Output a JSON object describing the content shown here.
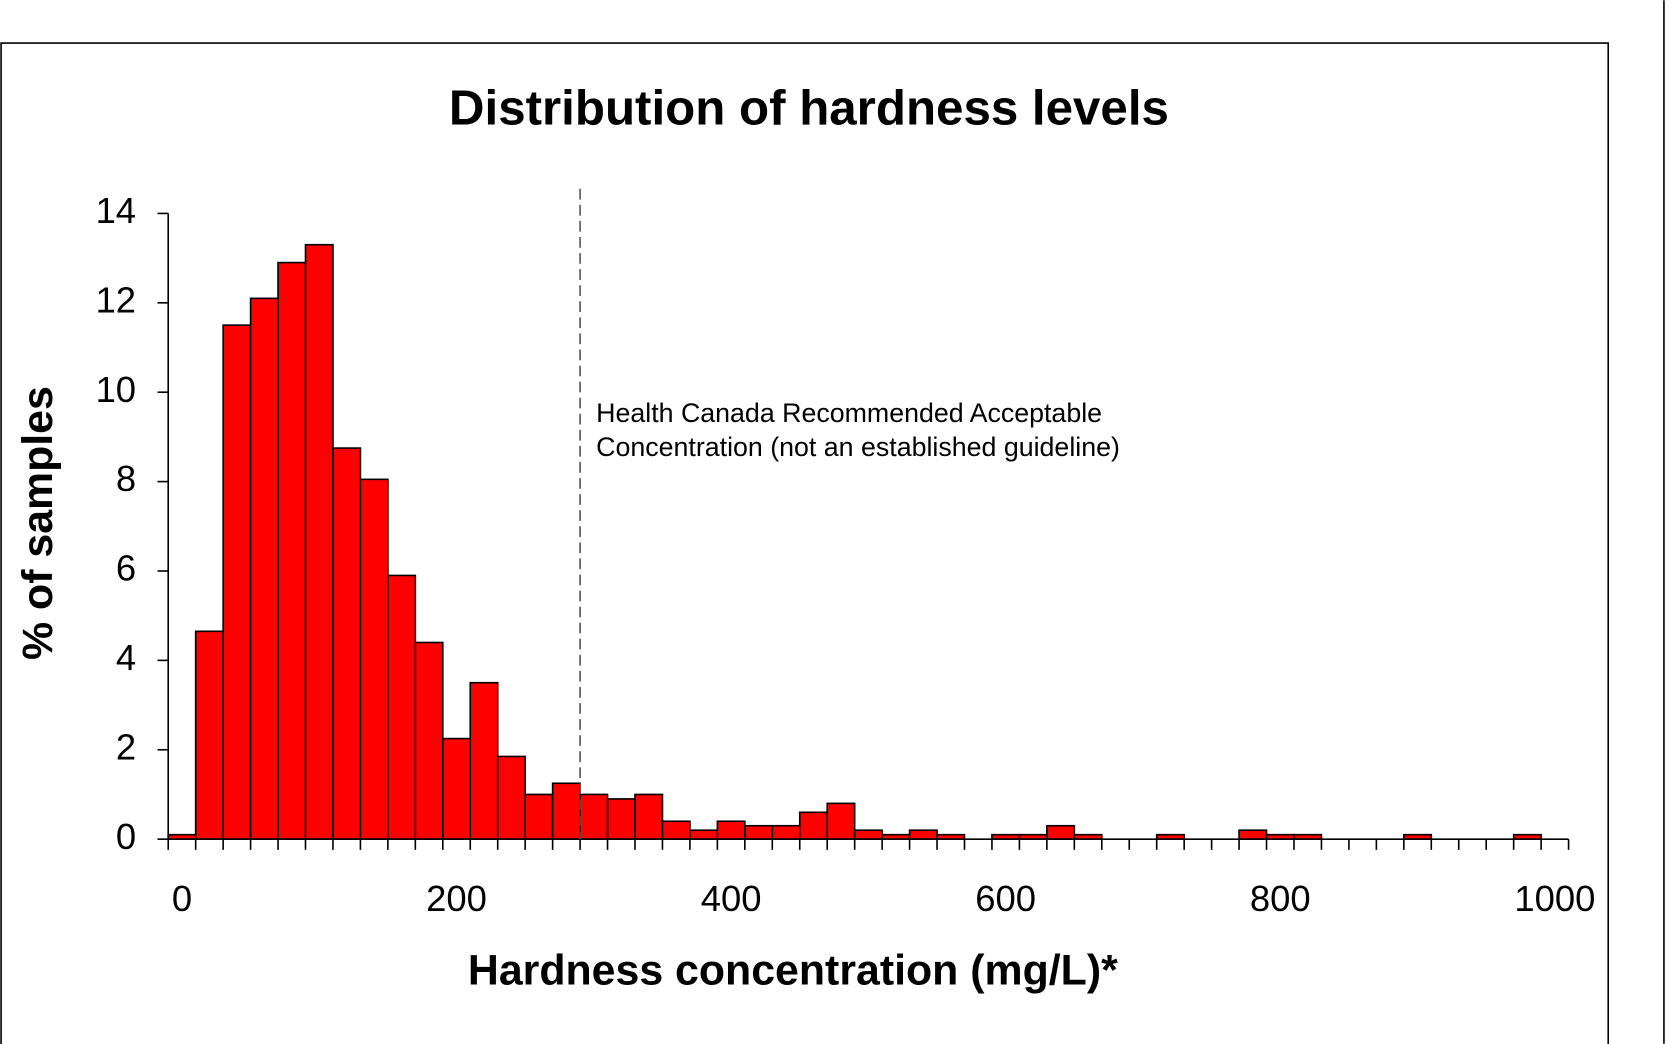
{
  "chart_data": {
    "type": "histogram",
    "title": "Distribution of hardness levels",
    "x_label": "Hardness concentration (mg/L)*",
    "y_label": "% of samples",
    "bins": [
      -10,
      10,
      30,
      50,
      70,
      90,
      110,
      130,
      150,
      170,
      190,
      210,
      230,
      250,
      270,
      290,
      310,
      330,
      350,
      370,
      390,
      410,
      430,
      450,
      470,
      490,
      510,
      530,
      550,
      570,
      590,
      610,
      630,
      650,
      670,
      690,
      710,
      730,
      750,
      770,
      790,
      810,
      830,
      850,
      870,
      890,
      910,
      930,
      950,
      970,
      990,
      1010
    ],
    "values": [
      0.1,
      4.65,
      11.5,
      12.1,
      12.9,
      13.3,
      8.75,
      8.05,
      5.9,
      4.4,
      2.25,
      3.5,
      1.85,
      1.0,
      1.25,
      1.0,
      0.9,
      1.0,
      0.4,
      0.2,
      0.4,
      0.3,
      0.3,
      0.6,
      0.8,
      0.2,
      0.1,
      0.2,
      0.1,
      0,
      0.1,
      0.1,
      0.3,
      0.1,
      0,
      0,
      0.1,
      0,
      0,
      0.2,
      0.1,
      0.1,
      0,
      0,
      0,
      0.1,
      0,
      0,
      0,
      0.1,
      0
    ],
    "color": "#ff0000",
    "xlim": [
      -10,
      1010
    ],
    "xticks": [
      0,
      200,
      400,
      600,
      800,
      1000
    ],
    "ylim": [
      0,
      14
    ],
    "yticks": [
      0,
      2,
      4,
      6,
      8,
      10,
      12,
      14
    ],
    "reference_line": {
      "x": 290,
      "annotation": [
        "Health Canada Recommended Acceptable",
        "Concentration (not an established guideline)"
      ]
    }
  }
}
